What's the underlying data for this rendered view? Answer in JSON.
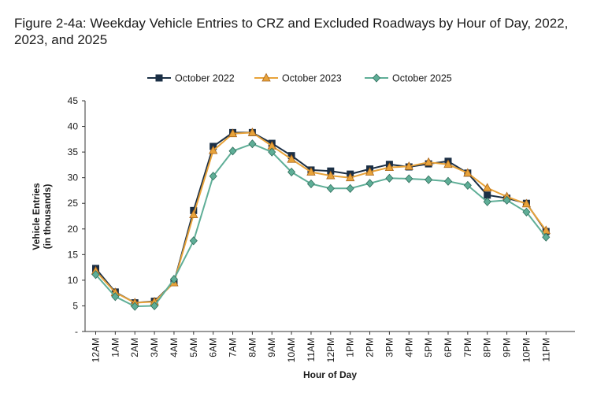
{
  "chart_data": {
    "type": "line",
    "title": "Figure 2-4a: Weekday Vehicle Entries to CRZ and Excluded Roadways by Hour of Day, 2022, 2023, and 2025",
    "xlabel": "Hour of Day",
    "ylabel": "Vehicle Entries",
    "ylabel_sub": "(in thousands)",
    "categories": [
      "12AM",
      "1AM",
      "2AM",
      "3AM",
      "4AM",
      "5AM",
      "6AM",
      "7AM",
      "8AM",
      "9AM",
      "10AM",
      "11AM",
      "12PM",
      "1PM",
      "2PM",
      "3PM",
      "4PM",
      "5PM",
      "6PM",
      "7PM",
      "8PM",
      "9PM",
      "10PM",
      "11PM"
    ],
    "ylim": [
      0,
      45
    ],
    "yticks": [
      {
        "value": 0,
        "label": "-"
      },
      {
        "value": 5,
        "label": "5"
      },
      {
        "value": 10,
        "label": "10"
      },
      {
        "value": 15,
        "label": "15"
      },
      {
        "value": 20,
        "label": "20"
      },
      {
        "value": 25,
        "label": "25"
      },
      {
        "value": 30,
        "label": "30"
      },
      {
        "value": 35,
        "label": "35"
      },
      {
        "value": 40,
        "label": "40"
      },
      {
        "value": 45,
        "label": "45"
      }
    ],
    "grid": false,
    "legend_position": "top",
    "series": [
      {
        "name": "October 2022",
        "color": "#1b2f45",
        "marker": "square",
        "values": [
          12.3,
          7.7,
          5.6,
          5.9,
          9.6,
          23.6,
          36.1,
          38.8,
          38.8,
          36.7,
          34.3,
          31.5,
          31.3,
          30.7,
          31.7,
          32.6,
          32.1,
          32.7,
          33.2,
          30.9,
          26.6,
          26.0,
          25.0,
          19.5
        ]
      },
      {
        "name": "October 2023",
        "color": "#e8a33a",
        "marker": "triangle",
        "values": [
          11.8,
          7.6,
          5.6,
          5.8,
          9.5,
          22.8,
          35.3,
          38.6,
          38.8,
          36.2,
          33.6,
          31.1,
          30.4,
          30.0,
          31.1,
          32.0,
          32.2,
          33.0,
          32.6,
          30.9,
          28.0,
          26.3,
          24.9,
          19.7
        ]
      },
      {
        "name": "October 2025",
        "color": "#5fae97",
        "marker": "diamond",
        "values": [
          11.1,
          6.8,
          4.9,
          5.0,
          10.2,
          17.7,
          30.3,
          35.2,
          36.6,
          35.0,
          31.1,
          28.8,
          27.9,
          27.9,
          28.9,
          29.9,
          29.8,
          29.6,
          29.3,
          28.5,
          25.3,
          25.6,
          23.3,
          18.4
        ]
      }
    ]
  }
}
